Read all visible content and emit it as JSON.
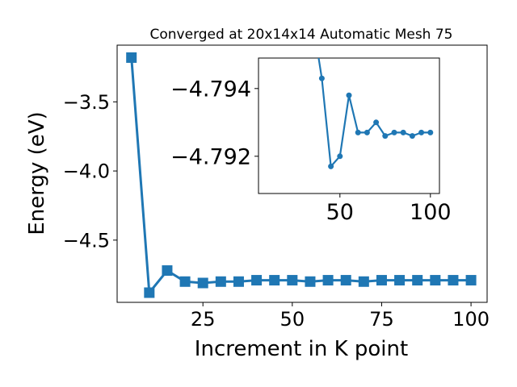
{
  "chart_data": [
    {
      "type": "line",
      "title": "Converged at 20x14x14 Automatic Mesh 75",
      "xlabel": "Increment in K point",
      "ylabel": "Energy (eV)",
      "xlim": [
        1,
        104.5
      ],
      "ylim": [
        -4.95,
        -3.09
      ],
      "x_ticks": [
        25,
        50,
        75,
        100
      ],
      "x_tick_labels": [
        "25",
        "50",
        "75",
        "100"
      ],
      "y_ticks": [
        -3.5,
        -4.0,
        -4.5
      ],
      "y_tick_labels": [
        "−3.5",
        "−4.0",
        "−4.5"
      ],
      "marker": "square",
      "color": "#1f77b4",
      "grid": false,
      "series": [
        {
          "x": [
            5,
            10,
            15,
            20,
            25,
            30,
            35,
            40,
            45,
            50,
            55,
            60,
            65,
            70,
            75,
            80,
            85,
            90,
            95,
            100
          ],
          "y": [
            -3.18,
            -4.88,
            -4.72,
            -4.8,
            -4.81,
            -4.8,
            -4.8,
            -4.79,
            -4.79,
            -4.79,
            -4.8,
            -4.79,
            -4.79,
            -4.8,
            -4.79,
            -4.79,
            -4.79,
            -4.79,
            -4.79,
            -4.79
          ]
        }
      ]
    },
    {
      "type": "line",
      "role": "inset",
      "xlim": [
        5,
        105
      ],
      "ylim": [
        -4.7909,
        -4.7949
      ],
      "x_ticks": [
        50,
        100
      ],
      "x_tick_labels": [
        "50",
        "100"
      ],
      "y_ticks": [
        -4.794,
        -4.792
      ],
      "y_tick_labels": [
        "−4.794",
        "−4.792"
      ],
      "marker": "circle",
      "color": "#1f77b4",
      "grid": false,
      "series": [
        {
          "x": [
            35,
            40,
            45,
            50,
            55,
            60,
            65,
            70,
            75,
            80,
            85,
            90,
            95,
            100
          ],
          "y": [
            -4.796,
            -4.7943,
            -4.7917,
            -4.792,
            -4.7938,
            -4.7927,
            -4.7927,
            -4.793,
            -4.7926,
            -4.7927,
            -4.7927,
            -4.7926,
            -4.7927,
            -4.7927
          ]
        }
      ]
    }
  ]
}
